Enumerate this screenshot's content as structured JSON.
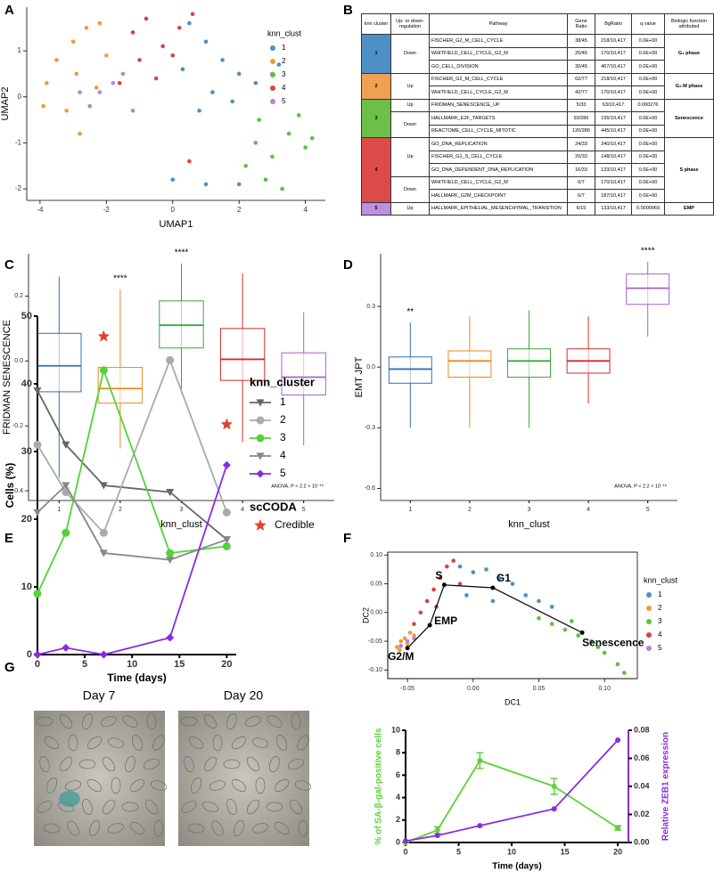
{
  "chart_data": [
    {
      "type": "scatter",
      "panel": "A",
      "xlabel": "UMAP1",
      "ylabel": "UMAP2",
      "xlim": [
        -4.4,
        4.6
      ],
      "ylim": [
        -2.25,
        1.95
      ],
      "xticks": [
        -4,
        -2,
        0,
        2,
        4
      ],
      "yticks": [
        -2,
        -1,
        0,
        1
      ],
      "legend_title": "knn_clust",
      "legend": "top-right",
      "series": [
        {
          "name": "1",
          "color": "#4e8fc6",
          "x": [
            0.5,
            1,
            1.5,
            2,
            2.5,
            3,
            1.2,
            0.8,
            0,
            1,
            2,
            3.2,
            0.3,
            1.8
          ],
          "y": [
            1.6,
            1.2,
            0.8,
            0.5,
            0.3,
            0.5,
            0.1,
            -0.3,
            -1.8,
            -1.9,
            -1.9,
            0.7,
            0.6,
            -0.1
          ]
        },
        {
          "name": "2",
          "color": "#f09a38",
          "x": [
            -3.8,
            -3.5,
            -3,
            -2.6,
            -2.2,
            -3.2,
            -2.8,
            -2.3,
            -3.9,
            -2.9,
            -2
          ],
          "y": [
            0.3,
            0.8,
            1.2,
            1.5,
            1.6,
            -0.3,
            -0.8,
            0.2,
            -0.2,
            0.5,
            0.9
          ]
        },
        {
          "name": "3",
          "color": "#5cbf42",
          "x": [
            2.5,
            3,
            3.5,
            4,
            2.8,
            3.3,
            2.2,
            3.8,
            4.2,
            2.6
          ],
          "y": [
            -1,
            -1.3,
            -0.8,
            -1.1,
            -1.8,
            -2,
            -1.5,
            -0.4,
            -0.9,
            -0.5
          ]
        },
        {
          "name": "4",
          "color": "#d9433f",
          "x": [
            -1.2,
            -0.8,
            -0.3,
            0.2,
            -1,
            -0.5,
            0,
            -1.6,
            0.6,
            0.5
          ],
          "y": [
            1.4,
            1.7,
            1.1,
            1.5,
            0.8,
            0.4,
            0.9,
            0.3,
            1.8,
            -1.4
          ]
        },
        {
          "name": "5",
          "color": "#b882d6",
          "x": [
            -2.2,
            -1.8,
            -2.5,
            -1.5,
            -2.8,
            -1.2
          ],
          "y": [
            0.1,
            0.3,
            -0.2,
            0.5,
            0.1,
            -0.3
          ]
        }
      ]
    },
    {
      "type": "box",
      "panel": "C",
      "xlabel": "knn_clust",
      "ylabel": "FRIDMAN SENESCENCE",
      "categories": [
        "1",
        "2",
        "3",
        "4",
        "5"
      ],
      "colors": [
        "#2f73b5",
        "#ea8a1e",
        "#39a839",
        "#d42a2a",
        "#a066c8"
      ],
      "ylim": [
        -0.43,
        0.33
      ],
      "yticks": [
        -0.4,
        -0.2,
        {
          "value": 0,
          "label": "0.0"
        },
        0.2
      ],
      "whislo": [
        -0.36,
        -0.27,
        -0.1,
        -0.25,
        -0.26
      ],
      "q1": [
        -0.095,
        -0.13,
        0.04,
        -0.06,
        -0.105
      ],
      "median": [
        -0.015,
        -0.085,
        0.11,
        0.005,
        -0.05
      ],
      "q3": [
        0.085,
        -0.02,
        0.185,
        0.1,
        0.025
      ],
      "whishi": [
        0.26,
        0.22,
        0.3,
        0.27,
        0.15
      ],
      "significance": [
        {
          "category": "2",
          "label": "****"
        },
        {
          "category": "3",
          "label": "****"
        }
      ],
      "note": "ANOVA, P < 2.2 × 10⁻¹⁶"
    },
    {
      "type": "box",
      "panel": "D",
      "xlabel": "knn_clust",
      "ylabel": "EMT JPT",
      "categories": [
        "1",
        "2",
        "3",
        "4",
        "5"
      ],
      "colors": [
        "#2f73b5",
        "#ea8a1e",
        "#39a839",
        "#d42a2a",
        "#a066c8"
      ],
      "ylim": [
        -0.66,
        0.56
      ],
      "yticks": [
        -0.6,
        -0.3,
        {
          "value": 0,
          "label": "0.0"
        },
        0.3
      ],
      "whislo": [
        -0.3,
        -0.3,
        -0.3,
        -0.18,
        0.15
      ],
      "q1": [
        -0.08,
        -0.05,
        -0.05,
        -0.03,
        0.31
      ],
      "median": [
        -0.01,
        0.03,
        0.03,
        0.03,
        0.39
      ],
      "q3": [
        0.05,
        0.08,
        0.09,
        0.09,
        0.46
      ],
      "whishi": [
        0.22,
        0.25,
        0.28,
        0.25,
        0.52
      ],
      "significance": [
        {
          "category": "1",
          "label": "**"
        },
        {
          "category": "5",
          "label": "****"
        }
      ],
      "note": "ANOVA, P < 2.2 × 10⁻¹⁶"
    },
    {
      "type": "line",
      "panel": "E",
      "xlabel": "Time (days)",
      "ylabel": "Cells (%)",
      "xlim": [
        0,
        21
      ],
      "ylim": [
        0,
        50
      ],
      "xticks": [
        0,
        5,
        10,
        15,
        20
      ],
      "yticks": [
        0,
        10,
        20,
        30,
        40,
        50
      ],
      "x": [
        0,
        3,
        7,
        14,
        20
      ],
      "legend_title": "knn_cluster",
      "legend": "right",
      "series": [
        {
          "name": "1",
          "color": "#666666",
          "marker": "triangle-down",
          "values": [
            39,
            31,
            25,
            24,
            17
          ]
        },
        {
          "name": "2",
          "color": "#aaaaaa",
          "marker": "circle",
          "values": [
            31,
            24,
            18,
            43.5,
            21
          ]
        },
        {
          "name": "3",
          "color": "#55d13a",
          "marker": "circle",
          "values": [
            9,
            18,
            42,
            15,
            16
          ]
        },
        {
          "name": "4",
          "color": "#888888",
          "marker": "triangle-down",
          "values": [
            21,
            25,
            15,
            14,
            17
          ]
        },
        {
          "name": "5",
          "color": "#8a2be2",
          "marker": "diamond",
          "values": [
            0,
            1,
            0,
            2.5,
            28
          ]
        }
      ],
      "credible": {
        "title": "scCODA",
        "label": "Credible",
        "color": "#e0432e",
        "x": [
          7,
          20
        ],
        "y": [
          47,
          34
        ]
      }
    },
    {
      "type": "scatter",
      "panel": "F",
      "xlabel": "DC1",
      "ylabel": "DC2",
      "xlim": [
        -0.065,
        0.125
      ],
      "ylim": [
        -0.115,
        0.105
      ],
      "xticks": [
        -0.05,
        {
          "value": 0,
          "label": "0.00"
        },
        0.05,
        {
          "value": 0.1,
          "label": "0.10"
        }
      ],
      "yticks": [
        {
          "value": -0.1,
          "label": "-0.10"
        },
        -0.05,
        {
          "value": 0,
          "label": "0.00"
        },
        0.05,
        {
          "value": 0.1,
          "label": "0.10"
        }
      ],
      "legend_title": "knn_clust",
      "legend": "right",
      "frame": true,
      "series": [
        {
          "name": "1",
          "color": "#4e8fc6",
          "x": [
            -0.01,
            0,
            0.01,
            0.02,
            0.03,
            0.04,
            0.05,
            0.06,
            -0.005,
            0.015
          ],
          "y": [
            0.08,
            0.07,
            0.075,
            0.06,
            0.05,
            0.03,
            0.02,
            0.01,
            0.03,
            0.02
          ]
        },
        {
          "name": "2",
          "color": "#f09a38",
          "x": [
            -0.058,
            -0.055,
            -0.052,
            -0.05,
            -0.048,
            -0.056,
            -0.045
          ],
          "y": [
            -0.06,
            -0.05,
            -0.045,
            -0.055,
            -0.035,
            -0.065,
            -0.04
          ]
        },
        {
          "name": "3",
          "color": "#5cbf42",
          "x": [
            0.05,
            0.06,
            0.07,
            0.08,
            0.09,
            0.1,
            0.11,
            0.115,
            0.075,
            0.095
          ],
          "y": [
            -0.01,
            -0.02,
            -0.03,
            -0.04,
            -0.05,
            -0.07,
            -0.09,
            -0.105,
            -0.015,
            -0.06
          ]
        },
        {
          "name": "4",
          "color": "#d9433f",
          "x": [
            -0.04,
            -0.035,
            -0.03,
            -0.025,
            -0.02,
            -0.015,
            -0.045,
            -0.028,
            -0.01
          ],
          "y": [
            0,
            0.02,
            0.04,
            0.06,
            0.08,
            0.09,
            -0.02,
            0.01,
            0.05
          ]
        },
        {
          "name": "5",
          "color": "#b882d6",
          "x": [
            -0.05,
            -0.045,
            -0.055
          ],
          "y": [
            -0.05,
            -0.045,
            -0.058
          ]
        }
      ],
      "trajectory": {
        "labels": [
          "G2/M",
          "EMP",
          "S",
          "G1",
          "Senescence"
        ],
        "x": [
          -0.05,
          -0.033,
          -0.022,
          0.015,
          0.083
        ],
        "y": [
          -0.062,
          -0.022,
          0.048,
          0.043,
          -0.035
        ]
      }
    },
    {
      "type": "line",
      "xlabel": "Time (days)",
      "ylabel": "% of SA-β-gal-positive cells",
      "y2label": "Relative ZEB1 expression",
      "xlim": [
        0,
        21
      ],
      "ylim": [
        0,
        10
      ],
      "y2lim": [
        0,
        0.08
      ],
      "xticks": [
        0,
        5,
        10,
        15,
        20
      ],
      "yticks": [
        0,
        2,
        4,
        6,
        8,
        10
      ],
      "y2ticks": [
        {
          "value": 0,
          "label": "0.00"
        },
        0.02,
        0.04,
        0.06,
        0.08
      ],
      "x": [
        0,
        3,
        7,
        14,
        20
      ],
      "series": [
        {
          "color": "#5fd13a",
          "marker": "circle",
          "values": [
            0,
            1.1,
            7.3,
            5,
            1.3
          ],
          "errors": [
            0,
            0.3,
            0.7,
            0.7,
            0.2
          ]
        },
        {
          "color": "#8a2be2",
          "marker": "circle",
          "axis": "y2",
          "values": [
            0.001,
            0.005,
            0.012,
            0.024,
            0.073
          ]
        }
      ]
    }
  ],
  "images": {
    "panel": "G",
    "titles": [
      "Day 7",
      "Day 20"
    ]
  },
  "table": {
    "panel": "B",
    "headers": [
      "knn cluster",
      "Up- or down-regulation",
      "Pathway",
      "Gene Ratio",
      "BgRatio",
      "q value",
      "Biologic function attributed"
    ],
    "groups": [
      {
        "cluster": "1",
        "color": "#4e8fc6",
        "function": "G₂ phase",
        "directions": [
          {
            "direction": "Down",
            "rows": [
              [
                "FISCHER_G2_M_CELL_CYCLE",
                "38/45",
                "218/10,417",
                "0.0E+00"
              ],
              [
                "WHITFIELD_CELL_CYCLE_G2_M",
                "25/45",
                "170/10,417",
                "0.0E+00"
              ],
              [
                "GO_CELL_DIVISION",
                "30/45",
                "467/10,417",
                "0.0E+00"
              ]
            ]
          }
        ]
      },
      {
        "cluster": "2",
        "color": "#f0a050",
        "function": "G₂-M phase",
        "directions": [
          {
            "direction": "Up",
            "rows": [
              [
                "FISCHER_G2_M_CELL_CYCLE",
                "62/77",
                "218/10,417",
                "0.0E+00"
              ],
              [
                "WHITFIELD_CELL_CYCLE_G2_M",
                "42/77",
                "170/10,417",
                "0.0E+00"
              ]
            ]
          }
        ]
      },
      {
        "cluster": "3",
        "color": "#6cc04a",
        "function": "Senescence",
        "directions": [
          {
            "direction": "Up",
            "rows": [
              [
                "FRIDMAN_SENESCENCE_UP",
                "5/33",
                "63/10,417",
                "0.000276"
              ]
            ]
          },
          {
            "direction": "Down",
            "rows": [
              [
                "HALLMARK_E2F_TARGETS",
                "93/286",
                "195/10,417",
                "0.0E+00"
              ],
              [
                "REACTOME_CELL_CYCLE_MITOTIC",
                "120/286",
                "445/10,417",
                "0.0E+00"
              ]
            ]
          }
        ]
      },
      {
        "cluster": "4",
        "color": "#dd4a4a",
        "function": "S phase",
        "directions": [
          {
            "direction": "Up",
            "rows": [
              [
                "GO_DNA_REPLICATION",
                "24/33",
                "240/10,417",
                "0.0E+00"
              ],
              [
                "FISCHER_G1_S_CELL_CYCLE",
                "20/33",
                "148/10,417",
                "0.0E+00"
              ],
              [
                "GO_DNA_DEPENDENT_DNA_REPLICATION",
                "16/33",
                "133/10,417",
                "0.0E+00"
              ]
            ]
          },
          {
            "direction": "Down",
            "rows": [
              [
                "WHITFIELD_CELL_CYCLE_G2_M",
                "6/7",
                "170/10,417",
                "0.0E+00"
              ],
              [
                "HALLMARK_G2M_CHECKPOINT",
                "6/7",
                "187/10,417",
                "0.0E+00"
              ]
            ]
          }
        ]
      },
      {
        "cluster": "5",
        "color": "#c08ee0",
        "function": "EMP",
        "directions": [
          {
            "direction": "Up",
            "rows": [
              [
                "HALLMARK_EPITHELIAL_MESENCHYMAL_TRANSITION",
                "6/15",
                "133/10,417",
                "0.0000069"
              ]
            ]
          }
        ]
      }
    ]
  }
}
